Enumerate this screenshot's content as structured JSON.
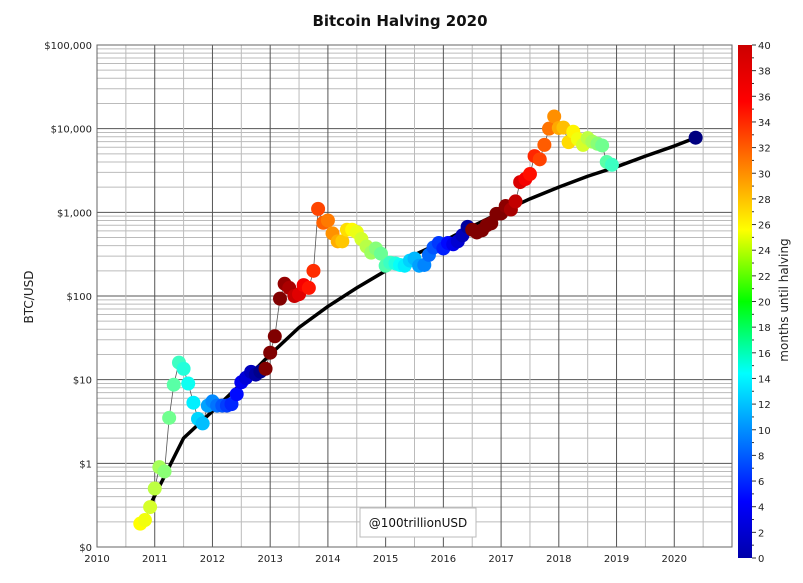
{
  "chart_data": {
    "type": "scatter",
    "title": "Bitcoin Halving 2020",
    "xlabel": "",
    "ylabel": "BTC/USD",
    "xlim": [
      2010,
      2021
    ],
    "ylim": [
      0.1,
      100000
    ],
    "yscale": "log",
    "grid": true,
    "x_tick_labels": [
      "2010",
      "2011",
      "2012",
      "2013",
      "2014",
      "2015",
      "2016",
      "2017",
      "2018",
      "2019",
      "2020"
    ],
    "y_ticks": [
      0.1,
      1,
      10,
      100,
      1000,
      10000,
      100000
    ],
    "y_tick_labels": [
      "$0",
      "$1",
      "$10",
      "$100",
      "$1,000",
      "$10,000",
      "$100,000"
    ],
    "colorbar": {
      "label": "months until halving",
      "colormap": "jet",
      "range": [
        0,
        40
      ],
      "tick_labels": [
        "0",
        "2",
        "4",
        "6",
        "8",
        "10",
        "12",
        "14",
        "16",
        "18",
        "20",
        "22",
        "24",
        "26",
        "28",
        "30",
        "32",
        "34",
        "36",
        "38",
        "40"
      ]
    },
    "watermark": "@100trillionUSD",
    "trend_color": "#000000",
    "connector_color": "#555555",
    "points_fields": [
      "year",
      "price_usd",
      "months_until_halving"
    ],
    "points": [
      [
        2010.75,
        0.19,
        25
      ],
      [
        2010.83,
        0.21,
        24.5
      ],
      [
        2010.92,
        0.3,
        23.4
      ],
      [
        2011.0,
        0.5,
        22.4
      ],
      [
        2011.08,
        0.9,
        21.5
      ],
      [
        2011.17,
        0.8,
        20.4
      ],
      [
        2011.25,
        3.5,
        19.4
      ],
      [
        2011.33,
        8.7,
        18.5
      ],
      [
        2011.42,
        16,
        17.4
      ],
      [
        2011.5,
        13.5,
        16.4
      ],
      [
        2011.58,
        9,
        15.5
      ],
      [
        2011.67,
        5.3,
        14.4
      ],
      [
        2011.75,
        3.4,
        13.4
      ],
      [
        2011.83,
        3,
        12.5
      ],
      [
        2011.92,
        4.9,
        11.4
      ],
      [
        2012.0,
        5.5,
        10.4
      ],
      [
        2012.08,
        4.9,
        9.5
      ],
      [
        2012.17,
        4.9,
        8.4
      ],
      [
        2012.25,
        4.9,
        7.4
      ],
      [
        2012.33,
        5.1,
        6.5
      ],
      [
        2012.42,
        6.7,
        5.4
      ],
      [
        2012.5,
        9.3,
        4.4
      ],
      [
        2012.58,
        10.5,
        3.5
      ],
      [
        2012.67,
        12.4,
        2.4
      ],
      [
        2012.75,
        11.5,
        1.4
      ],
      [
        2012.83,
        12.5,
        0.5
      ],
      [
        2012.92,
        13.5,
        40
      ],
      [
        2013.0,
        21,
        40
      ],
      [
        2013.08,
        33,
        40
      ],
      [
        2013.17,
        93,
        40
      ],
      [
        2013.25,
        140,
        39.2
      ],
      [
        2013.33,
        125,
        38.3
      ],
      [
        2013.42,
        100,
        37.2
      ],
      [
        2013.5,
        105,
        36.2
      ],
      [
        2013.58,
        135,
        35.3
      ],
      [
        2013.67,
        125,
        34.2
      ],
      [
        2013.75,
        200,
        33.2
      ],
      [
        2013.83,
        1100,
        32.3
      ],
      [
        2013.92,
        750,
        31.2
      ],
      [
        2014.0,
        800,
        30.2
      ],
      [
        2014.08,
        560,
        29.3
      ],
      [
        2014.17,
        450,
        28.2
      ],
      [
        2014.25,
        450,
        27.2
      ],
      [
        2014.33,
        620,
        26.3
      ],
      [
        2014.42,
        620,
        25.2
      ],
      [
        2014.5,
        580,
        24.2
      ],
      [
        2014.58,
        480,
        23.3
      ],
      [
        2014.67,
        390,
        22.2
      ],
      [
        2014.75,
        330,
        21.2
      ],
      [
        2014.83,
        370,
        20.3
      ],
      [
        2014.92,
        320,
        19.2
      ],
      [
        2015.0,
        230,
        18.2
      ],
      [
        2015.08,
        250,
        17.3
      ],
      [
        2015.17,
        245,
        16.2
      ],
      [
        2015.25,
        235,
        15.2
      ],
      [
        2015.33,
        230,
        14.3
      ],
      [
        2015.42,
        265,
        13.2
      ],
      [
        2015.5,
        280,
        12.2
      ],
      [
        2015.58,
        230,
        11.3
      ],
      [
        2015.67,
        235,
        10.2
      ],
      [
        2015.75,
        310,
        9.2
      ],
      [
        2015.83,
        380,
        8.3
      ],
      [
        2015.92,
        430,
        7.2
      ],
      [
        2016.0,
        370,
        6.2
      ],
      [
        2016.08,
        430,
        5.3
      ],
      [
        2016.17,
        415,
        4.2
      ],
      [
        2016.25,
        450,
        3.2
      ],
      [
        2016.33,
        530,
        2.3
      ],
      [
        2016.42,
        670,
        1.2
      ],
      [
        2016.5,
        620,
        40
      ],
      [
        2016.58,
        575,
        40
      ],
      [
        2016.67,
        610,
        40
      ],
      [
        2016.75,
        700,
        40
      ],
      [
        2016.83,
        740,
        40
      ],
      [
        2016.92,
        960,
        40
      ],
      [
        2017.0,
        970,
        40
      ],
      [
        2017.08,
        1190,
        39.5
      ],
      [
        2017.17,
        1080,
        38.4
      ],
      [
        2017.25,
        1350,
        37.4
      ],
      [
        2017.33,
        2300,
        36.5
      ],
      [
        2017.42,
        2500,
        35.4
      ],
      [
        2017.5,
        2870,
        34.4
      ],
      [
        2017.58,
        4700,
        33.5
      ],
      [
        2017.67,
        4300,
        32.4
      ],
      [
        2017.75,
        6400,
        31.4
      ],
      [
        2017.83,
        10000,
        30.5
      ],
      [
        2017.92,
        14000,
        29.4
      ],
      [
        2018.0,
        10200,
        28.4
      ],
      [
        2018.08,
        10300,
        27.5
      ],
      [
        2018.17,
        6900,
        26.4
      ],
      [
        2018.25,
        9200,
        25.4
      ],
      [
        2018.33,
        7500,
        24.5
      ],
      [
        2018.42,
        6400,
        23.4
      ],
      [
        2018.5,
        7700,
        22.4
      ],
      [
        2018.58,
        7000,
        21.5
      ],
      [
        2018.67,
        6600,
        20.4
      ],
      [
        2018.75,
        6300,
        19.4
      ],
      [
        2018.83,
        4000,
        18.5
      ],
      [
        2018.92,
        3700,
        17.4
      ],
      [
        2020.37,
        7800,
        0
      ]
    ],
    "trend_line": [
      [
        2010.95,
        0.35
      ],
      [
        2011.5,
        2
      ],
      [
        2012.0,
        4.2
      ],
      [
        2012.5,
        9
      ],
      [
        2013.0,
        20
      ],
      [
        2013.5,
        42
      ],
      [
        2014.0,
        75
      ],
      [
        2014.5,
        125
      ],
      [
        2015.0,
        200
      ],
      [
        2015.5,
        310
      ],
      [
        2016.0,
        450
      ],
      [
        2016.5,
        680
      ],
      [
        2017.0,
        1000
      ],
      [
        2017.5,
        1450
      ],
      [
        2018.0,
        2000
      ],
      [
        2018.5,
        2700
      ],
      [
        2019.0,
        3500
      ],
      [
        2019.5,
        4700
      ],
      [
        2020.0,
        6200
      ],
      [
        2020.37,
        7800
      ]
    ]
  }
}
